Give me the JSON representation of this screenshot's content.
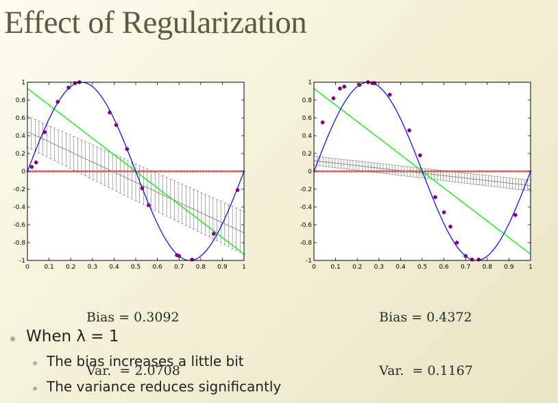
{
  "slide": {
    "title": "Effect of Regularization",
    "bullets": [
      {
        "level": 1,
        "text": "When λ = 1"
      },
      {
        "level": 2,
        "text": "The bias increases a little bit"
      },
      {
        "level": 2,
        "text": "The variance reduces significantly"
      }
    ]
  },
  "colors": {
    "title": "#5e5a3e",
    "true_curve": "#0000ff",
    "mean_fit": "#00ee00",
    "error_bars": "#707070",
    "samples": "#880088",
    "zero_line": "#d04040"
  },
  "chart_data": [
    {
      "type": "line",
      "xlim": [
        0,
        1
      ],
      "ylim": [
        -1,
        1
      ],
      "xticks": [
        0,
        0.1,
        0.2,
        0.3,
        0.4,
        0.5,
        0.6,
        0.7,
        0.8,
        0.9,
        1
      ],
      "yticks": [
        -1,
        -0.8,
        -0.6,
        -0.4,
        -0.2,
        0,
        0.2,
        0.4,
        0.6,
        0.8,
        1
      ],
      "xticklabels": [
        "0",
        "0.1",
        "0.2",
        "0.3",
        "0.4",
        "0.5",
        "0.6",
        "0.7",
        "0.8",
        "0.9",
        "1"
      ],
      "yticklabels": [
        "-1",
        "-0.8",
        "-0.6",
        "-0.4",
        "-0.2",
        "0",
        "0.2",
        "0.4",
        "0.6",
        "0.8",
        "1"
      ],
      "true_function": "sin(2*pi*x)",
      "mean_fit": {
        "x": [
          0,
          1
        ],
        "y": [
          0.93,
          -0.93
        ]
      },
      "spread_band": {
        "x": [
          0,
          1
        ],
        "upper": [
          0.62,
          -0.45
        ],
        "lower": [
          0.27,
          -0.93
        ]
      },
      "sample_points": {
        "x": [
          0.02,
          0.04,
          0.08,
          0.14,
          0.19,
          0.22,
          0.24,
          0.38,
          0.41,
          0.46,
          0.53,
          0.56,
          0.69,
          0.7,
          0.76,
          0.86,
          0.97
        ],
        "y": [
          0.05,
          0.1,
          0.44,
          0.78,
          0.94,
          0.99,
          1.0,
          0.66,
          0.52,
          0.25,
          -0.19,
          -0.38,
          -0.94,
          -0.95,
          -0.99,
          -0.7,
          -0.21
        ]
      },
      "stats": {
        "bias_label": "Bias = 0.3092",
        "var_label": "Var.  = 2.0708"
      }
    },
    {
      "type": "line",
      "xlim": [
        0,
        1
      ],
      "ylim": [
        -1,
        1
      ],
      "xticks": [
        0,
        0.1,
        0.2,
        0.3,
        0.4,
        0.5,
        0.6,
        0.7,
        0.8,
        0.9,
        1
      ],
      "yticks": [
        -1,
        -0.8,
        -0.6,
        -0.4,
        -0.2,
        0,
        0.2,
        0.4,
        0.6,
        0.8,
        1
      ],
      "xticklabels": [
        "0",
        "0.1",
        "0.2",
        "0.3",
        "0.4",
        "0.5",
        "0.6",
        "0.7",
        "0.8",
        "0.9",
        "1"
      ],
      "yticklabels": [
        "-1",
        "-0.8",
        "-0.6",
        "-0.4",
        "-0.2",
        "0",
        "0.2",
        "0.4",
        "0.6",
        "0.8",
        "1"
      ],
      "true_function": "sin(2*pi*x)",
      "mean_fit": {
        "x": [
          0,
          1
        ],
        "y": [
          0.93,
          -0.93
        ]
      },
      "spread_band": {
        "x": [
          0,
          1
        ],
        "upper": [
          0.17,
          -0.1
        ],
        "lower": [
          0.07,
          -0.22
        ]
      },
      "sample_points": {
        "x": [
          0.04,
          0.09,
          0.12,
          0.14,
          0.21,
          0.25,
          0.27,
          0.28,
          0.35,
          0.44,
          0.49,
          0.56,
          0.6,
          0.63,
          0.66,
          0.7,
          0.73,
          0.76,
          0.93
        ],
        "y": [
          0.55,
          0.82,
          0.93,
          0.95,
          0.97,
          1.0,
          0.99,
          0.99,
          0.86,
          0.46,
          0.18,
          -0.29,
          -0.46,
          -0.62,
          -0.8,
          -0.95,
          -0.99,
          -0.99,
          -0.49
        ]
      },
      "stats": {
        "bias_label": "Bias = 0.4372",
        "var_label": "Var.  = 0.1167"
      }
    }
  ]
}
